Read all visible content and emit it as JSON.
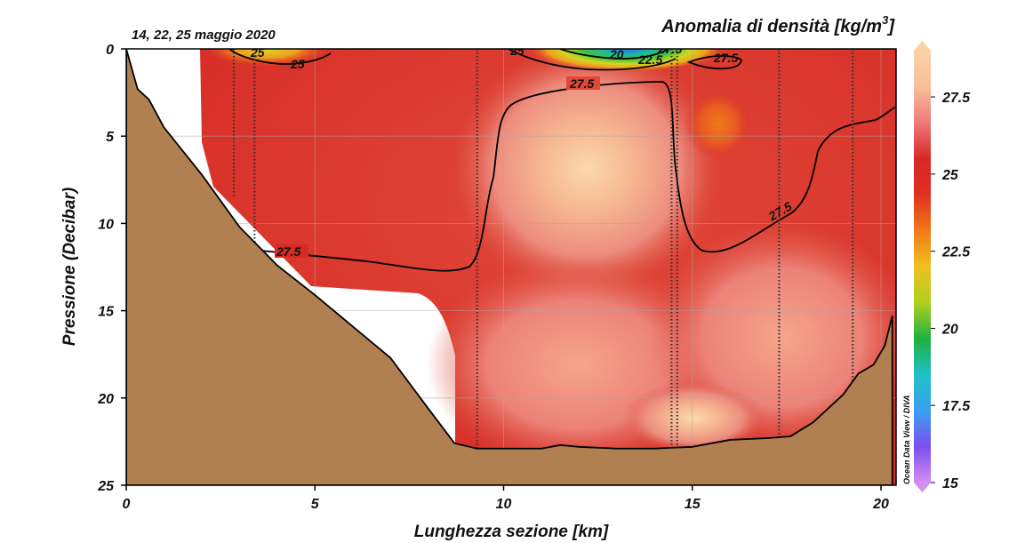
{
  "chart_data": {
    "type": "heatmap",
    "title": "Anomalia di densità [kg/m",
    "title_superscript": "3",
    "subtitle": "14, 22, 25 maggio 2020",
    "xlabel": "Lunghezza sezione [km]",
    "ylabel": "Pressione (Decibar)",
    "xlim": [
      0,
      20.4
    ],
    "ylim": [
      25,
      0
    ],
    "x_ticks": [
      "0",
      "5",
      "10",
      "15",
      "20"
    ],
    "y_ticks": [
      "0",
      "5",
      "10",
      "15",
      "20",
      "25"
    ],
    "colorbar": {
      "range": [
        15,
        29
      ],
      "ticks": [
        "15",
        "17.5",
        "20",
        "22.5",
        "25",
        "27.5"
      ],
      "colors": [
        "#d68cf0",
        "#7c4ff0",
        "#3aa0f0",
        "#20c0c8",
        "#20b040",
        "#b0d020",
        "#f0c020",
        "#f07a18",
        "#e03020",
        "#d62828",
        "#ef7a7a",
        "#f8c09a",
        "#fbd2a6"
      ]
    },
    "contour_labels": [
      "27.5",
      "27.5",
      "27.5",
      "27.5",
      "25",
      "25",
      "20",
      "22.5",
      "25",
      "27.5"
    ],
    "station_x": [
      2.85,
      3.4,
      9.3,
      14.45,
      14.6,
      17.3,
      19.25
    ],
    "bathymetry": {
      "x": [
        0,
        0.3,
        0.6,
        1,
        2,
        3,
        4,
        5,
        6,
        7,
        8,
        8.7,
        9.3,
        10,
        11,
        11.5,
        12,
        13,
        14,
        15,
        16,
        17,
        17.6,
        18.2,
        19,
        19.4,
        19.8,
        20.1,
        20.3
      ],
      "y": [
        0,
        2.3,
        2.9,
        4.5,
        7.2,
        10.2,
        12.4,
        14.1,
        15.9,
        17.7,
        20.6,
        22.6,
        22.9,
        22.9,
        22.9,
        22.7,
        22.8,
        22.9,
        22.9,
        22.8,
        22.4,
        22.3,
        22.2,
        21.4,
        19.8,
        18.6,
        18.1,
        17.0,
        15.3
      ]
    },
    "watermark": "Ocean Data View / DIVA",
    "grid": true
  }
}
